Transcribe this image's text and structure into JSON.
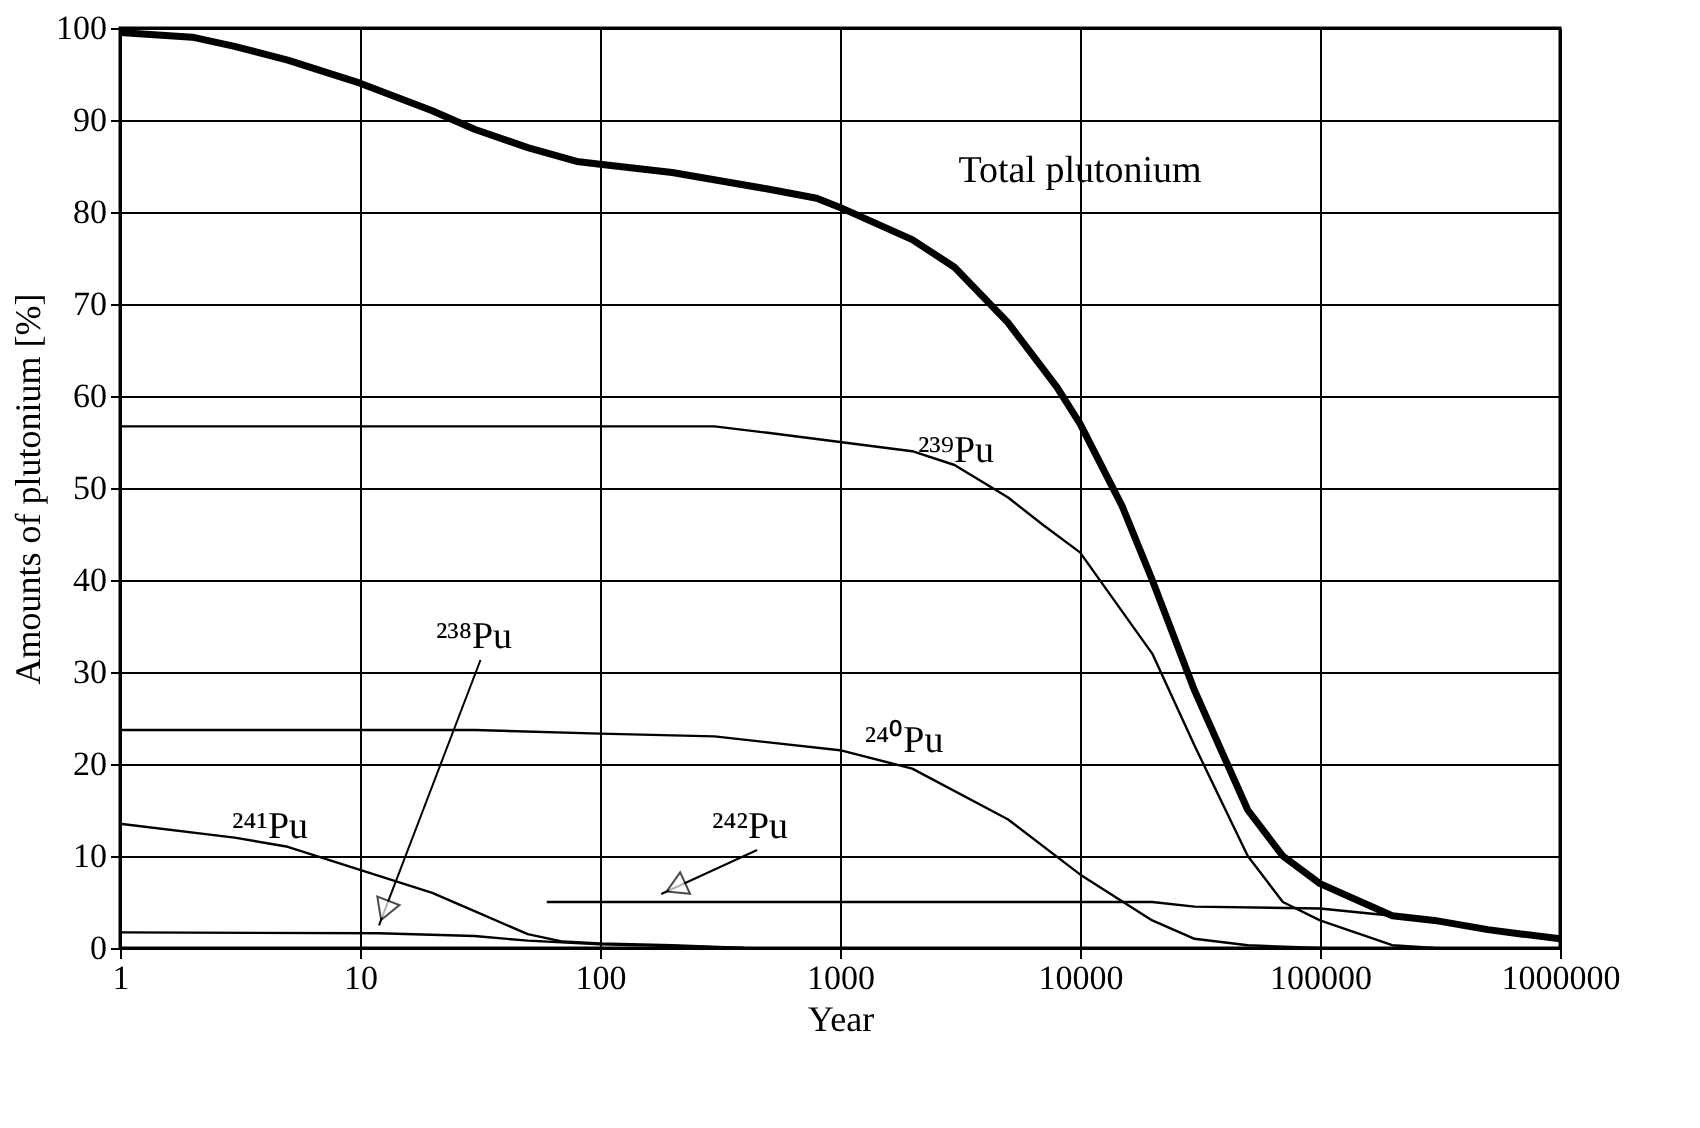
{
  "chart_data": {
    "type": "line",
    "xlabel": "Year",
    "ylabel": "Amounts of plutonium [%]",
    "log": "x",
    "grid": true,
    "marker": "none",
    "line_style": "solid",
    "xlim": [
      1,
      1000000
    ],
    "xticks": [
      1,
      10,
      100,
      1000,
      10000,
      100000,
      1000000
    ],
    "ylim": [
      0,
      100
    ],
    "yticks": [
      0,
      10,
      20,
      30,
      40,
      50,
      60,
      70,
      80,
      90,
      100
    ],
    "series": [
      {
        "name": "Total plutonium",
        "color": "#000000",
        "x": [
          1,
          2,
          3,
          5,
          10,
          20,
          30,
          50,
          80,
          100,
          200,
          500,
          800,
          1000,
          2000,
          3000,
          5000,
          8000,
          10000,
          15000,
          20000,
          30000,
          50000,
          70000,
          100000,
          200000,
          300000,
          500000,
          700000,
          1000000
        ],
        "values": [
          99.5,
          99,
          98,
          96.5,
          94,
          91,
          89,
          87,
          85.5,
          85.2,
          84.3,
          82.5,
          81.5,
          80.5,
          77,
          74,
          68,
          61,
          57,
          48,
          40,
          28,
          15,
          10,
          7,
          3.5,
          3,
          2,
          1.5,
          1
        ]
      },
      {
        "name": "²³⁹Pu",
        "color": "#000000",
        "x": [
          1,
          100,
          300,
          500,
          1000,
          2000,
          3000,
          5000,
          7000,
          10000,
          20000,
          30000,
          50000,
          70000,
          100000,
          200000,
          300000
        ],
        "values": [
          56.7,
          56.7,
          56.7,
          56,
          55,
          54,
          52.5,
          49,
          46,
          43,
          32,
          22,
          10,
          5,
          3,
          0.3,
          0
        ]
      },
      {
        "name": "²⁴⁰Pu",
        "color": "#000000",
        "x": [
          1,
          30,
          100,
          300,
          1000,
          2000,
          5000,
          10000,
          20000,
          30000,
          50000,
          100000
        ],
        "values": [
          23.7,
          23.7,
          23.3,
          23,
          21.5,
          19.5,
          14,
          8,
          3,
          1,
          0.3,
          0
        ]
      },
      {
        "name": "²⁴¹Pu",
        "color": "#000000",
        "x": [
          1,
          3,
          5,
          10,
          20,
          30,
          50,
          70,
          100,
          200,
          400
        ],
        "values": [
          13.5,
          12,
          11,
          8.5,
          6,
          4,
          1.5,
          0.7,
          0.5,
          0.3,
          0
        ]
      },
      {
        "name": "²³⁸Pu",
        "color": "#000000",
        "x": [
          1,
          12,
          30,
          50,
          100,
          200,
          400
        ],
        "values": [
          1.7,
          1.6,
          1.3,
          0.8,
          0.4,
          0.2,
          0
        ]
      },
      {
        "name": "²⁴²Pu",
        "color": "#000000",
        "x": [
          60,
          180,
          10000,
          20000,
          30000,
          100000,
          200000,
          500000,
          1000000
        ],
        "values": [
          5,
          5,
          5,
          5,
          4.5,
          4.3,
          3.5,
          2,
          1
        ]
      }
    ]
  }
}
